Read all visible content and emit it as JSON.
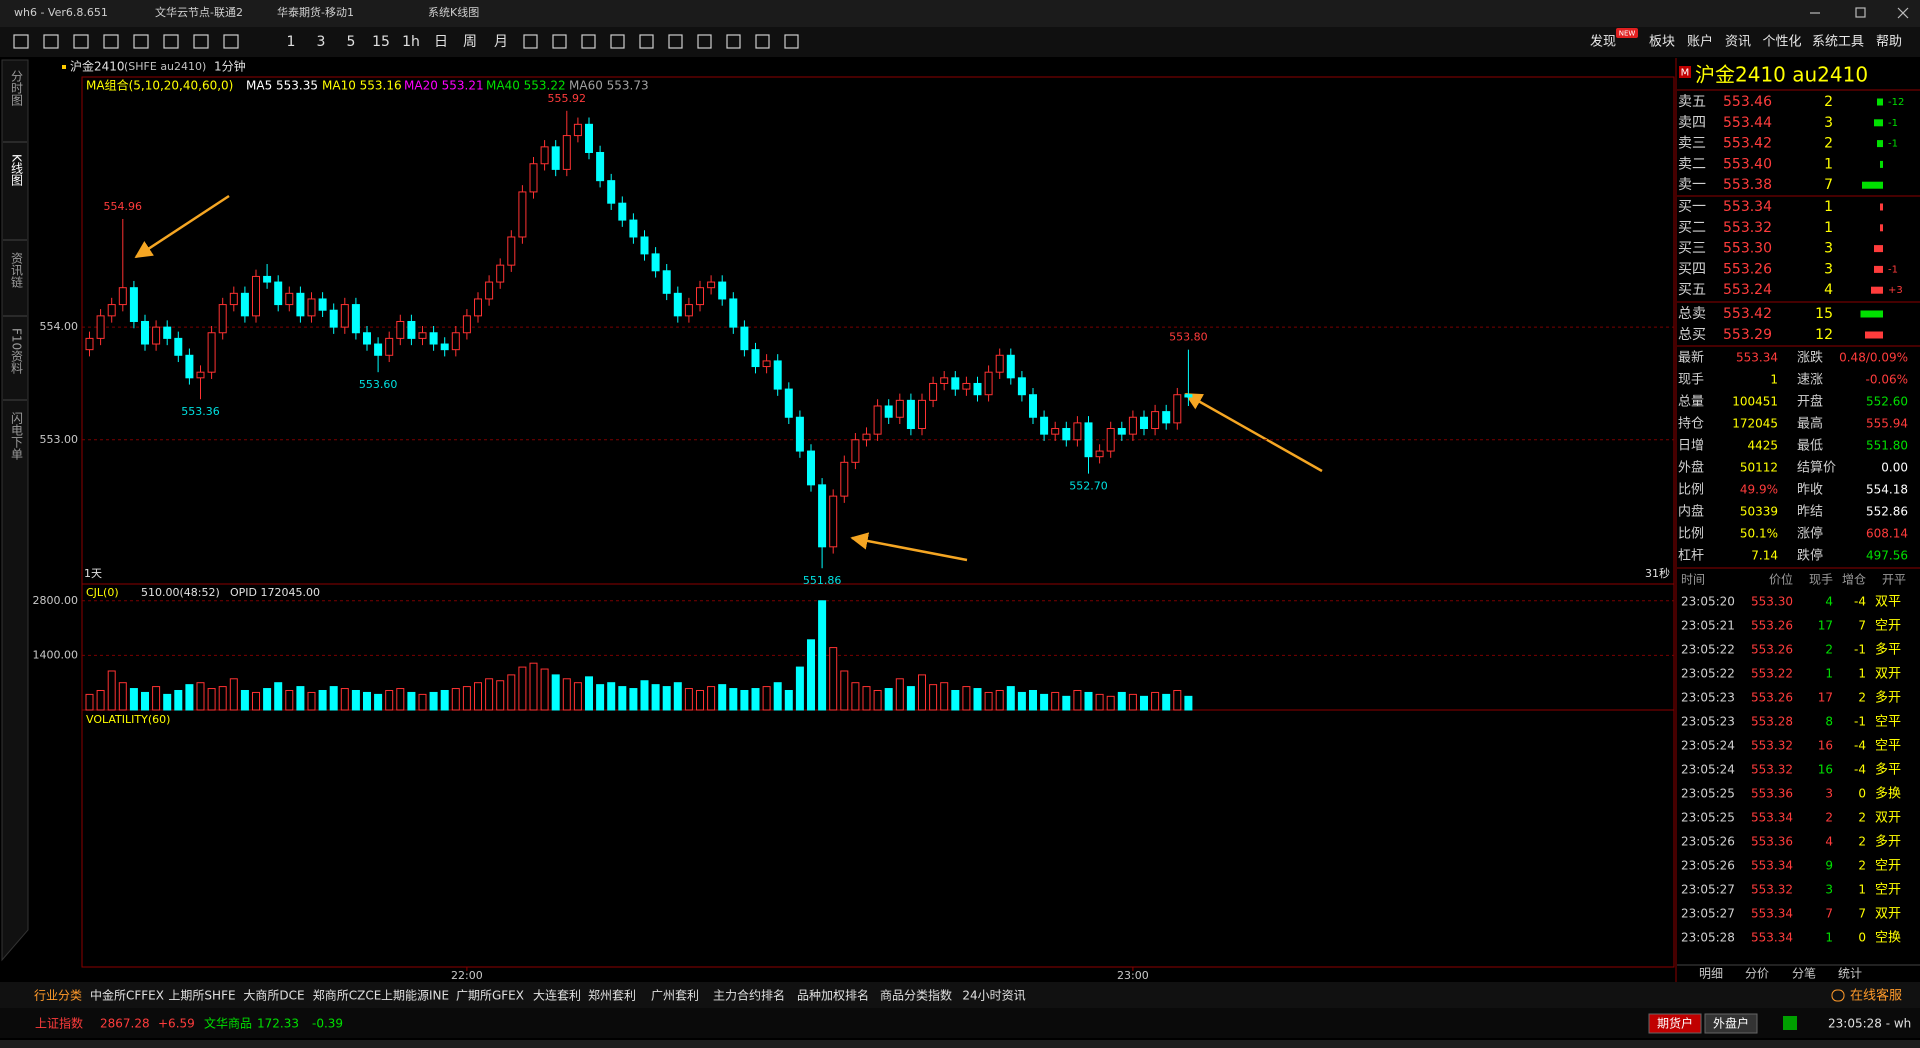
{
  "title_bar": {
    "items": [
      "wh6  -  Ver6.8.651",
      "文华云节点-联通2",
      "华泰期货-移动1",
      "系统K线图"
    ]
  },
  "toolbar": {
    "periods": [
      "1",
      "3",
      "5",
      "15",
      "1h",
      "日",
      "周",
      "月"
    ],
    "menu": [
      "发现",
      "板块",
      "账户",
      "资讯",
      "个性化",
      "系统工具",
      "帮助"
    ],
    "badge": "NEW"
  },
  "left_tabs": [
    "分时图",
    "K线图",
    "资讯链",
    "F10资料",
    "闪电下单"
  ],
  "chart_data": {
    "type": "candlestick",
    "symbol": "沪金2410",
    "code": "(SHFE au2410)",
    "period": "1分钟",
    "ma_title": "MA组合(5,10,20,40,60,0)",
    "ma_labels": [
      {
        "text": "MA5 553.35",
        "color": "#ffffff"
      },
      {
        "text": "MA10 553.16",
        "color": "#ffff00"
      },
      {
        "text": "MA20 553.21",
        "color": "#ff00ff"
      },
      {
        "text": "MA40 553.22",
        "color": "#00e000"
      },
      {
        "text": "MA60 553.73",
        "color": "#a0a0a0"
      }
    ],
    "up_color": "#ff3232",
    "down_color": "#00ffff",
    "candles": [
      [
        553.8,
        553.96,
        553.74,
        553.9
      ],
      [
        553.9,
        554.16,
        553.84,
        554.1
      ],
      [
        554.1,
        554.26,
        554.04,
        554.2
      ],
      [
        554.2,
        554.96,
        554.14,
        554.35
      ],
      [
        554.35,
        554.41,
        553.99,
        554.05
      ],
      [
        554.05,
        554.11,
        553.79,
        553.85
      ],
      [
        553.85,
        554.06,
        553.79,
        554.0
      ],
      [
        554.0,
        554.06,
        553.84,
        553.9
      ],
      [
        553.9,
        553.96,
        553.69,
        553.75
      ],
      [
        553.75,
        553.81,
        553.49,
        553.55
      ],
      [
        553.55,
        553.66,
        553.36,
        553.6
      ],
      [
        553.6,
        554.01,
        553.54,
        553.95
      ],
      [
        553.95,
        554.26,
        553.89,
        554.2
      ],
      [
        554.2,
        554.36,
        554.14,
        554.3
      ],
      [
        554.3,
        554.36,
        554.04,
        554.1
      ],
      [
        554.1,
        554.51,
        554.04,
        554.45
      ],
      [
        554.45,
        554.56,
        554.34,
        554.4
      ],
      [
        554.4,
        554.46,
        554.14,
        554.2
      ],
      [
        554.2,
        554.36,
        554.14,
        554.3
      ],
      [
        554.3,
        554.36,
        554.04,
        554.1
      ],
      [
        554.1,
        554.31,
        554.04,
        554.25
      ],
      [
        554.25,
        554.31,
        554.09,
        554.15
      ],
      [
        554.15,
        554.21,
        553.94,
        554.0
      ],
      [
        554.0,
        554.26,
        553.94,
        554.2
      ],
      [
        554.2,
        554.26,
        553.89,
        553.95
      ],
      [
        553.95,
        554.01,
        553.79,
        553.85
      ],
      [
        553.85,
        553.91,
        553.6,
        553.75
      ],
      [
        553.75,
        553.96,
        553.69,
        553.9
      ],
      [
        553.9,
        554.11,
        553.84,
        554.05
      ],
      [
        554.05,
        554.11,
        553.84,
        553.9
      ],
      [
        553.9,
        554.01,
        553.84,
        553.95
      ],
      [
        553.95,
        554.01,
        553.79,
        553.85
      ],
      [
        553.85,
        553.91,
        553.74,
        553.8
      ],
      [
        553.8,
        554.01,
        553.74,
        553.95
      ],
      [
        553.95,
        554.16,
        553.89,
        554.1
      ],
      [
        554.1,
        554.31,
        554.04,
        554.25
      ],
      [
        554.25,
        554.46,
        554.19,
        554.4
      ],
      [
        554.4,
        554.61,
        554.34,
        554.55
      ],
      [
        554.55,
        554.86,
        554.49,
        554.8
      ],
      [
        554.8,
        555.26,
        554.74,
        555.2
      ],
      [
        555.2,
        555.51,
        555.14,
        555.45
      ],
      [
        555.45,
        555.66,
        555.39,
        555.6
      ],
      [
        555.6,
        555.66,
        555.34,
        555.4
      ],
      [
        555.4,
        555.92,
        555.34,
        555.7
      ],
      [
        555.7,
        555.86,
        555.64,
        555.8
      ],
      [
        555.8,
        555.86,
        555.49,
        555.55
      ],
      [
        555.55,
        555.61,
        555.24,
        555.3
      ],
      [
        555.3,
        555.36,
        555.04,
        555.1
      ],
      [
        555.1,
        555.16,
        554.89,
        554.95
      ],
      [
        554.95,
        555.01,
        554.74,
        554.8
      ],
      [
        554.8,
        554.86,
        554.59,
        554.65
      ],
      [
        554.65,
        554.71,
        554.44,
        554.5
      ],
      [
        554.5,
        554.56,
        554.24,
        554.3
      ],
      [
        554.3,
        554.36,
        554.04,
        554.1
      ],
      [
        554.1,
        554.26,
        554.04,
        554.2
      ],
      [
        554.2,
        554.41,
        554.14,
        554.35
      ],
      [
        554.35,
        554.46,
        554.29,
        554.4
      ],
      [
        554.4,
        554.46,
        554.19,
        554.25
      ],
      [
        554.25,
        554.31,
        553.94,
        554.0
      ],
      [
        554.0,
        554.06,
        553.74,
        553.8
      ],
      [
        553.8,
        553.86,
        553.59,
        553.65
      ],
      [
        553.65,
        553.76,
        553.59,
        553.7
      ],
      [
        553.7,
        553.76,
        553.39,
        553.45
      ],
      [
        553.45,
        553.51,
        553.14,
        553.2
      ],
      [
        553.2,
        553.26,
        552.84,
        552.9
      ],
      [
        552.9,
        552.96,
        552.54,
        552.6
      ],
      [
        552.6,
        552.66,
        551.86,
        552.05
      ],
      [
        552.05,
        552.56,
        551.99,
        552.5
      ],
      [
        552.5,
        552.86,
        552.44,
        552.8
      ],
      [
        552.8,
        553.06,
        552.74,
        553.0
      ],
      [
        553.0,
        553.11,
        552.94,
        553.05
      ],
      [
        553.05,
        553.36,
        552.99,
        553.3
      ],
      [
        553.3,
        553.36,
        553.14,
        553.2
      ],
      [
        553.2,
        553.41,
        553.14,
        553.35
      ],
      [
        553.35,
        553.41,
        553.04,
        553.1
      ],
      [
        553.1,
        553.41,
        553.04,
        553.35
      ],
      [
        553.35,
        553.56,
        553.29,
        553.5
      ],
      [
        553.5,
        553.61,
        553.44,
        553.55
      ],
      [
        553.55,
        553.61,
        553.39,
        553.45
      ],
      [
        553.45,
        553.56,
        553.39,
        553.5
      ],
      [
        553.5,
        553.56,
        553.34,
        553.4
      ],
      [
        553.4,
        553.66,
        553.34,
        553.6
      ],
      [
        553.6,
        553.81,
        553.54,
        553.75
      ],
      [
        553.75,
        553.81,
        553.49,
        553.55
      ],
      [
        553.55,
        553.61,
        553.34,
        553.4
      ],
      [
        553.4,
        553.46,
        553.14,
        553.2
      ],
      [
        553.2,
        553.26,
        552.99,
        553.05
      ],
      [
        553.05,
        553.16,
        552.99,
        553.1
      ],
      [
        553.1,
        553.16,
        552.94,
        553.0
      ],
      [
        553.0,
        553.21,
        552.94,
        553.15
      ],
      [
        553.15,
        553.21,
        552.7,
        552.85
      ],
      [
        552.85,
        552.96,
        552.79,
        552.9
      ],
      [
        552.9,
        553.16,
        552.84,
        553.1
      ],
      [
        553.1,
        553.16,
        552.99,
        553.05
      ],
      [
        553.05,
        553.26,
        552.99,
        553.2
      ],
      [
        553.2,
        553.26,
        553.04,
        553.1
      ],
      [
        553.1,
        553.31,
        553.04,
        553.25
      ],
      [
        553.25,
        553.31,
        553.09,
        553.15
      ],
      [
        553.15,
        553.46,
        553.09,
        553.4
      ],
      [
        553.4,
        553.8,
        553.3,
        553.38
      ]
    ],
    "ylim": [
      551.72,
      556.22
    ],
    "yticks": [
      {
        "value": 554,
        "label": "554.00"
      },
      {
        "value": 553,
        "label": "553.00"
      }
    ],
    "xticks": [
      {
        "value": 34,
        "label": "22:00"
      },
      {
        "value": 94,
        "label": "23:00"
      }
    ],
    "annotations": [
      {
        "x": 3,
        "y": 554.96,
        "label": "554.96",
        "color": "#ff3c3c"
      },
      {
        "x": 10,
        "y": 553.36,
        "label": "553.36",
        "color": "#00e0e0"
      },
      {
        "x": 26,
        "y": 553.6,
        "label": "553.60",
        "color": "#00e0e0"
      },
      {
        "x": 43,
        "y": 555.92,
        "label": "555.92",
        "color": "#ff3c3c"
      },
      {
        "x": 66,
        "y": 551.86,
        "label": "551.86",
        "color": "#00e0e0"
      },
      {
        "x": 90,
        "y": 552.7,
        "label": "552.70",
        "color": "#00e0e0"
      },
      {
        "x": 99,
        "y": 553.8,
        "label": "553.80",
        "color": "#ff3c3c"
      }
    ],
    "left_note": "1天",
    "right_note": "31秒",
    "volume": {
      "title": "CJL(0)",
      "last": "510.00(48:52)",
      "opid": "OPID 172045.00",
      "values": [
        400,
        500,
        1000,
        700,
        550,
        450,
        600,
        400,
        500,
        650,
        700,
        550,
        600,
        800,
        500,
        450,
        550,
        700,
        500,
        600,
        450,
        500,
        600,
        550,
        500,
        450,
        400,
        500,
        550,
        450,
        400,
        450,
        500,
        550,
        600,
        700,
        800,
        750,
        900,
        1100,
        1200,
        1050,
        900,
        800,
        700,
        850,
        650,
        700,
        600,
        550,
        750,
        650,
        600,
        700,
        550,
        500,
        600,
        650,
        550,
        500,
        550,
        600,
        700,
        500,
        1100,
        1800,
        2800,
        1600,
        1000,
        700,
        600,
        500,
        550,
        800,
        600,
        900,
        650,
        700,
        500,
        600,
        550,
        450,
        500,
        600,
        450,
        500,
        400,
        450,
        350,
        500,
        450,
        400,
        350,
        450,
        400,
        350,
        450,
        400,
        500,
        350
      ],
      "ylim": [
        0,
        3230
      ],
      "yticks": [
        {
          "value": 2800,
          "label": "2800.00"
        },
        {
          "value": 1400,
          "label": "1400.00"
        }
      ]
    },
    "volatility_title": "VOLATILITY(60)"
  },
  "quote_panel": {
    "badge": "M",
    "title": "沪金2410  au2410",
    "asks": [
      {
        "label": "卖五",
        "price": "553.46",
        "qty": 2,
        "change": "-12"
      },
      {
        "label": "卖四",
        "price": "553.44",
        "qty": 3,
        "change": "-1"
      },
      {
        "label": "卖三",
        "price": "553.42",
        "qty": 2,
        "change": "-1"
      },
      {
        "label": "卖二",
        "price": "553.40",
        "qty": 1
      },
      {
        "label": "卖一",
        "price": "553.38",
        "qty": 7
      }
    ],
    "bids": [
      {
        "label": "买一",
        "price": "553.34",
        "qty": 1
      },
      {
        "label": "买二",
        "price": "553.32",
        "qty": 1
      },
      {
        "label": "买三",
        "price": "553.30",
        "qty": 3
      },
      {
        "label": "买四",
        "price": "553.26",
        "qty": 3,
        "change": "-1"
      },
      {
        "label": "买五",
        "price": "553.24",
        "qty": 4,
        "change": "+3"
      }
    ],
    "totals": [
      {
        "label": "总卖",
        "price": "553.42",
        "qty": 15,
        "color": "#00e000"
      },
      {
        "label": "总买",
        "price": "553.29",
        "qty": 12,
        "color": "#ff3c3c"
      }
    ],
    "stats": [
      {
        "l1": "最新",
        "v1": "553.34",
        "c1": "#ff3c3c",
        "l2": "涨跌",
        "v2": "0.48/0.09%",
        "c2": "#ff3c3c"
      },
      {
        "l1": "现手",
        "v1": "1",
        "c1": "#ffff00",
        "l2": "速涨",
        "v2": "-0.06%",
        "c2": "#ff3c3c"
      },
      {
        "l1": "总量",
        "v1": "100451",
        "c1": "#ffff00",
        "l2": "开盘",
        "v2": "552.60",
        "c2": "#00e000"
      },
      {
        "l1": "持仓",
        "v1": "172045",
        "c1": "#ffff00",
        "l2": "最高",
        "v2": "555.94",
        "c2": "#ff3c3c"
      },
      {
        "l1": "日增",
        "v1": "4425",
        "c1": "#ffff00",
        "l2": "最低",
        "v2": "551.80",
        "c2": "#00e000"
      },
      {
        "l1": "外盘",
        "v1": "50112",
        "c1": "#ffff00",
        "l2": "结算价",
        "v2": "0.00",
        "c2": "#ffffff"
      },
      {
        "l1": "比例",
        "v1": "49.9%",
        "c1": "#ff3c3c",
        "l2": "昨收",
        "v2": "554.18",
        "c2": "#ffffff"
      },
      {
        "l1": "内盘",
        "v1": "50339",
        "c1": "#ffff00",
        "l2": "昨结",
        "v2": "552.86",
        "c2": "#ffffff"
      },
      {
        "l1": "比例",
        "v1": "50.1%",
        "c1": "#ffff00",
        "l2": "涨停",
        "v2": "608.14",
        "c2": "#ff3c3c"
      },
      {
        "l1": "杠杆",
        "v1": "7.14",
        "c1": "#ffff00",
        "l2": "跌停",
        "v2": "497.56",
        "c2": "#00e000"
      }
    ],
    "ticks_header": [
      "时间",
      "价位",
      "现手",
      "增仓",
      "开平"
    ],
    "ticks": [
      {
        "time": "23:05:20",
        "price": "553.30",
        "qty": "4",
        "change": "-4",
        "type": "双平",
        "color": "#00e000"
      },
      {
        "time": "23:05:21",
        "price": "553.26",
        "qty": "17",
        "change": "7",
        "type": "空开",
        "color": "#00e000"
      },
      {
        "time": "23:05:22",
        "price": "553.26",
        "qty": "2",
        "change": "-1",
        "type": "多平",
        "color": "#00e000"
      },
      {
        "time": "23:05:22",
        "price": "553.22",
        "qty": "1",
        "change": "1",
        "type": "双开",
        "color": "#00e000"
      },
      {
        "time": "23:05:23",
        "price": "553.26",
        "qty": "17",
        "change": "2",
        "type": "多开",
        "color": "#ff3c3c"
      },
      {
        "time": "23:05:23",
        "price": "553.28",
        "qty": "8",
        "change": "-1",
        "type": "空平",
        "color": "#00e000"
      },
      {
        "time": "23:05:24",
        "price": "553.32",
        "qty": "16",
        "change": "-4",
        "type": "空平",
        "color": "#ff3c3c"
      },
      {
        "time": "23:05:24",
        "price": "553.32",
        "qty": "16",
        "change": "-4",
        "type": "多平",
        "color": "#00e000"
      },
      {
        "time": "23:05:25",
        "price": "553.36",
        "qty": "3",
        "change": "0",
        "type": "多换",
        "color": "#ff3c3c"
      },
      {
        "time": "23:05:25",
        "price": "553.34",
        "qty": "2",
        "change": "2",
        "type": "双开",
        "color": "#ff3c3c"
      },
      {
        "time": "23:05:26",
        "price": "553.36",
        "qty": "4",
        "change": "2",
        "type": "多开",
        "color": "#ff3c3c"
      },
      {
        "time": "23:05:26",
        "price": "553.34",
        "qty": "9",
        "change": "2",
        "type": "空开",
        "color": "#00e000"
      },
      {
        "time": "23:05:27",
        "price": "553.32",
        "qty": "3",
        "change": "1",
        "type": "空开",
        "color": "#00e000"
      },
      {
        "time": "23:05:27",
        "price": "553.34",
        "qty": "7",
        "change": "7",
        "type": "双开",
        "color": "#ff3c3c"
      },
      {
        "time": "23:05:28",
        "price": "553.34",
        "qty": "1",
        "change": "0",
        "type": "空换",
        "color": "#00e000"
      }
    ],
    "bottom_tabs": [
      "明细",
      "分价",
      "分笔",
      "统计"
    ]
  },
  "market_tabs": [
    "行业分类",
    "中金所CFFEX",
    "上期所SHFE",
    "大商所DCE",
    "郑商所CZCE",
    "上期能源INE",
    "广期所GFEX",
    "大连套利",
    "郑州套利",
    "广州套利",
    "主力合约排名",
    "品种加权排名",
    "商品分类指数",
    "24小时资讯"
  ],
  "service": "在线客服",
  "indices": [
    {
      "name": "上证指数",
      "value": "2867.28",
      "change": "+6.59"
    },
    {
      "name": "文华商品",
      "value": "172.33",
      "change": "-0.39"
    }
  ],
  "status_buttons": [
    "期货户",
    "外盘户"
  ],
  "clock": "23:05:28 - wh"
}
